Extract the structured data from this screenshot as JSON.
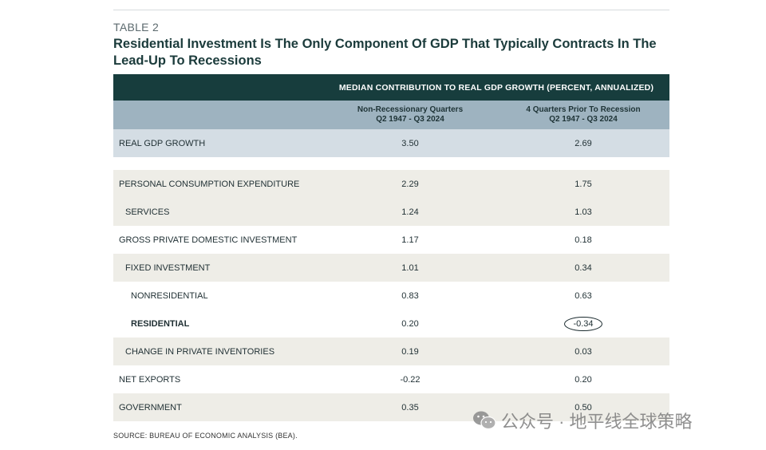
{
  "table_label": "TABLE 2",
  "title": "Residential Investment Is The Only Component Of GDP That Typically Contracts In The Lead-Up To Recessions",
  "header": {
    "group": "MEDIAN CONTRIBUTION TO REAL GDP GROWTH (PERCENT, ANNUALIZED)",
    "col1_line1": "Non-Recessionary Quarters",
    "col1_line2": "Q2 1947 - Q3 2024",
    "col2_line1": "4 Quarters Prior To Recession",
    "col2_line2": "Q2 1947 - Q3 2024"
  },
  "rows": [
    {
      "label": "REAL GDP GROWTH",
      "c1": "3.50",
      "c2": "2.69"
    },
    {
      "label": "PERSONAL CONSUMPTION EXPENDITURE",
      "c1": "2.29",
      "c2": "1.75"
    },
    {
      "label": "SERVICES",
      "c1": "1.24",
      "c2": "1.03"
    },
    {
      "label": "GROSS PRIVATE DOMESTIC INVESTMENT",
      "c1": "1.17",
      "c2": "0.18"
    },
    {
      "label": "FIXED INVESTMENT",
      "c1": "1.01",
      "c2": "0.34"
    },
    {
      "label": "NONRESIDENTIAL",
      "c1": "0.83",
      "c2": "0.63"
    },
    {
      "label": "RESIDENTIAL",
      "c1": "0.20",
      "c2": "-0.34"
    },
    {
      "label": "CHANGE IN PRIVATE INVENTORIES",
      "c1": "0.19",
      "c2": "0.03"
    },
    {
      "label": "NET EXPORTS",
      "c1": "-0.22",
      "c2": "0.20"
    },
    {
      "label": "GOVERNMENT",
      "c1": "0.35",
      "c2": "0.50"
    }
  ],
  "source": "SOURCE: BUREAU OF ECONOMIC ANALYSIS (BEA).",
  "watermark": "公众号 · 地平线全球策略"
}
